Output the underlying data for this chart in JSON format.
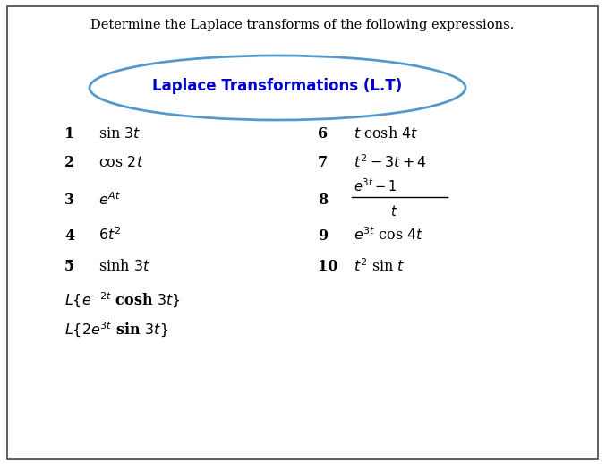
{
  "title": "Determine the Laplace transforms of the following expressions.",
  "ellipse_label": "Laplace Transformations (L.T)",
  "ellipse_color": "#5599cc",
  "ellipse_text_color": "#0000cc",
  "background_color": "#ffffff",
  "border_color": "#444444",
  "figsize": [
    6.77,
    5.18
  ],
  "dpi": 100
}
